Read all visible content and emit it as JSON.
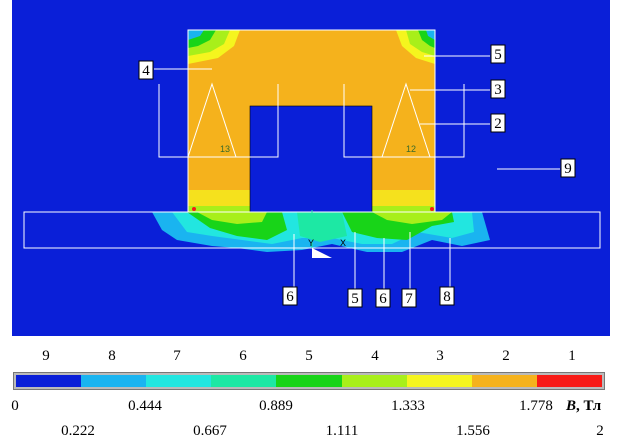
{
  "callouts": [
    {
      "text": "5"
    },
    {
      "text": "3"
    },
    {
      "text": "4"
    },
    {
      "text": "2"
    },
    {
      "text": "9"
    },
    {
      "text": "6"
    },
    {
      "text": "5"
    },
    {
      "text": "6"
    },
    {
      "text": "7"
    },
    {
      "text": "8"
    }
  ],
  "mesh_labels": {
    "left": "13",
    "right": "12",
    "axis_x": "X",
    "axis_y": "Y"
  },
  "legend": {
    "indices": [
      "9",
      "8",
      "7",
      "6",
      "5",
      "4",
      "3",
      "2",
      "1"
    ],
    "colors": [
      "#0a1fd8",
      "#1ab4f0",
      "#22e6e0",
      "#1de8a4",
      "#18d418",
      "#a8ef1a",
      "#f5f51e",
      "#f5b21c",
      "#f81a16"
    ],
    "values_top": [
      "0",
      "0.444",
      "0.889",
      "1.333",
      "1.778"
    ],
    "values_bottom": [
      "0.222",
      "0.667",
      "1.111",
      "1.556",
      "2"
    ],
    "unit_symbol": "B",
    "unit_suffix": ", Тл"
  }
}
